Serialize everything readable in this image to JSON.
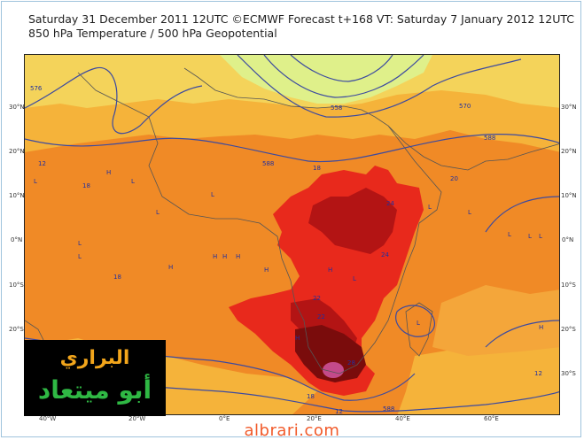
{
  "header": {
    "title_line1": "Saturday 31 December 2011 12UTC ©ECMWF Forecast t+168 VT: Saturday 7 January 2012 12UTC",
    "title_line2": "850 hPa Temperature / 500 hPa Geopotential"
  },
  "axes": {
    "longitude_labels": [
      "40°W",
      "20°W",
      "0°E",
      "20°E",
      "40°E",
      "60°E"
    ],
    "latitude_labels": [
      "30°N",
      "20°N",
      "10°N",
      "0°N",
      "10°S",
      "20°S",
      "30°S"
    ]
  },
  "contour_labels": {
    "geopotential": [
      "576",
      "588",
      "582",
      "588",
      "570",
      "564",
      "558",
      "588",
      "570",
      "582",
      "588",
      "582",
      "576",
      "582",
      "588"
    ],
    "temperature": [
      "12",
      "18",
      "18",
      "16",
      "18",
      "20",
      "24",
      "24",
      "22",
      "22",
      "20",
      "18",
      "12",
      "12",
      "18",
      "24",
      "28",
      "28",
      "12",
      "6"
    ]
  },
  "pressure_markers": [
    "L",
    "L",
    "L",
    "L",
    "L",
    "L",
    "L",
    "L",
    "L",
    "L",
    "L",
    "L",
    "L",
    "H",
    "H",
    "H",
    "H",
    "H",
    "H",
    "H",
    "H",
    "H",
    "L",
    "L",
    "L"
  ],
  "colors": {
    "cool_green": "#dff08a",
    "yellow_orange": "#f4d35a",
    "light_orange": "#f5b33a",
    "orange": "#f08a26",
    "red": "#e8291c",
    "dark_red": "#b31414",
    "maroon": "#7a0c0c",
    "contour_blue": "#3c4aa0"
  },
  "logo": {
    "line1": "البراري",
    "line2": "أبو ميتعاد"
  },
  "site_name": "albrari.com"
}
